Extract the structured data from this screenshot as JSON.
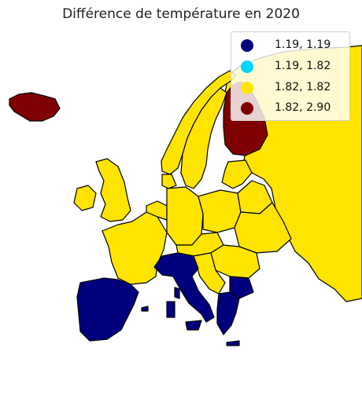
{
  "title": "Différence de température en 2020",
  "colors": {
    "navy": "#00007f",
    "cyan": "#00d5ff",
    "yellow": "#ffe400",
    "darkred": "#7f0000",
    "border": "#000000"
  },
  "legend": [
    {
      "label": "1.19, 1.19",
      "color": "#00007f"
    },
    {
      "label": "1.19, 1.82",
      "color": "#00d5ff"
    },
    {
      "label": "1.82, 1.82",
      "color": "#ffe400"
    },
    {
      "label": "1.82, 2.90",
      "color": "#7f0000"
    }
  ]
}
